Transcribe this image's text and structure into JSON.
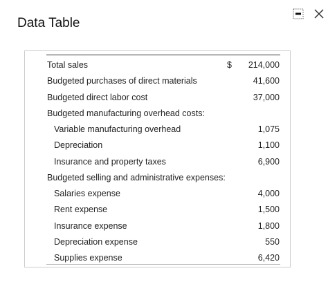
{
  "header": {
    "title": "Data Table"
  },
  "table": {
    "rows": [
      {
        "label": "Total sales",
        "currency": "$",
        "value": "214,000"
      },
      {
        "label": "Budgeted purchases of direct materials",
        "value": "41,600"
      },
      {
        "label": "Budgeted direct labor cost",
        "value": "37,000"
      },
      {
        "label": "Budgeted manufacturing overhead costs:",
        "items": [
          {
            "label": "Variable manufacturing overhead",
            "value": "1,075"
          },
          {
            "label": "Depreciation",
            "value": "1,100"
          },
          {
            "label": "Insurance and property taxes",
            "value": "6,900"
          }
        ]
      },
      {
        "label": "Budgeted selling and administrative expenses:",
        "items": [
          {
            "label": "Salaries expense",
            "value": "4,000"
          },
          {
            "label": "Rent expense",
            "value": "1,500"
          },
          {
            "label": "Insurance expense",
            "value": "1,800"
          },
          {
            "label": "Depreciation expense",
            "value": "550"
          },
          {
            "label": "Supplies expense",
            "value": "6,420"
          }
        ]
      }
    ]
  }
}
